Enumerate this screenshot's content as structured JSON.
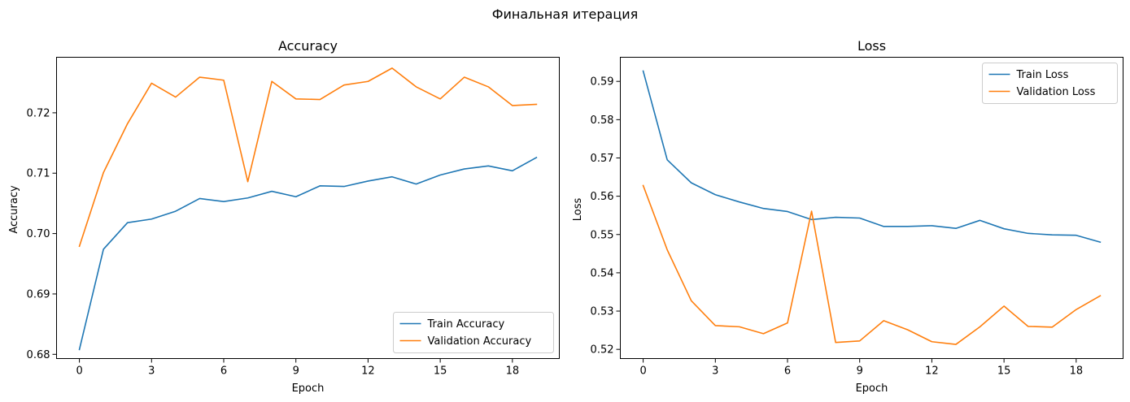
{
  "suptitle": "Финальная итерация",
  "chart_data": [
    {
      "type": "line",
      "title": "Accuracy",
      "xlabel": "Epoch",
      "ylabel": "Accuracy",
      "xlim": [
        -0.95,
        19.95
      ],
      "ylim": [
        0.6793,
        0.7292
      ],
      "xticks": [
        0,
        3,
        6,
        9,
        12,
        15,
        18
      ],
      "yticks": [
        0.68,
        0.69,
        0.7,
        0.71,
        0.72
      ],
      "ytick_labels": [
        "0.68",
        "0.69",
        "0.70",
        "0.71",
        "0.72"
      ],
      "legend_position": "lower right",
      "x": [
        0,
        1,
        2,
        3,
        4,
        5,
        6,
        7,
        8,
        9,
        10,
        11,
        12,
        13,
        14,
        15,
        16,
        17,
        18,
        19
      ],
      "series": [
        {
          "name": "Train Accuracy",
          "color": "#1f77b4",
          "values": [
            0.6808,
            0.6974,
            0.7018,
            0.7024,
            0.7037,
            0.7058,
            0.7053,
            0.7059,
            0.707,
            0.7061,
            0.7079,
            0.7078,
            0.7087,
            0.7094,
            0.7082,
            0.7097,
            0.7107,
            0.7112,
            0.7104,
            0.7126
          ]
        },
        {
          "name": "Validation Accuracy",
          "color": "#ff7f0e",
          "values": [
            0.6979,
            0.7101,
            0.7182,
            0.7249,
            0.7226,
            0.7259,
            0.7254,
            0.7086,
            0.7252,
            0.7223,
            0.7222,
            0.7246,
            0.7252,
            0.7274,
            0.7243,
            0.7223,
            0.7259,
            0.7243,
            0.7212,
            0.7214
          ]
        }
      ]
    },
    {
      "type": "line",
      "title": "Loss",
      "xlabel": "Epoch",
      "ylabel": "Loss",
      "xlim": [
        -0.95,
        19.95
      ],
      "ylim": [
        0.5176,
        0.5963
      ],
      "xticks": [
        0,
        3,
        6,
        9,
        12,
        15,
        18
      ],
      "yticks": [
        0.52,
        0.53,
        0.54,
        0.55,
        0.56,
        0.57,
        0.58,
        0.59
      ],
      "ytick_labels": [
        "0.52",
        "0.53",
        "0.54",
        "0.55",
        "0.56",
        "0.57",
        "0.58",
        "0.59"
      ],
      "legend_position": "upper right",
      "x": [
        0,
        1,
        2,
        3,
        4,
        5,
        6,
        7,
        8,
        9,
        10,
        11,
        12,
        13,
        14,
        15,
        16,
        17,
        18,
        19
      ],
      "series": [
        {
          "name": "Train Loss",
          "color": "#1f77b4",
          "values": [
            0.5927,
            0.5695,
            0.5635,
            0.5604,
            0.5585,
            0.5568,
            0.556,
            0.5539,
            0.5545,
            0.5543,
            0.5521,
            0.5521,
            0.5523,
            0.5516,
            0.5537,
            0.5515,
            0.5503,
            0.5499,
            0.5498,
            0.548
          ]
        },
        {
          "name": "Validation Loss",
          "color": "#ff7f0e",
          "values": [
            0.5628,
            0.546,
            0.5327,
            0.5262,
            0.5259,
            0.5241,
            0.5269,
            0.5561,
            0.5218,
            0.5222,
            0.5275,
            0.5251,
            0.522,
            0.5213,
            0.5259,
            0.5313,
            0.526,
            0.5258,
            0.5304,
            0.534
          ]
        }
      ]
    }
  ]
}
